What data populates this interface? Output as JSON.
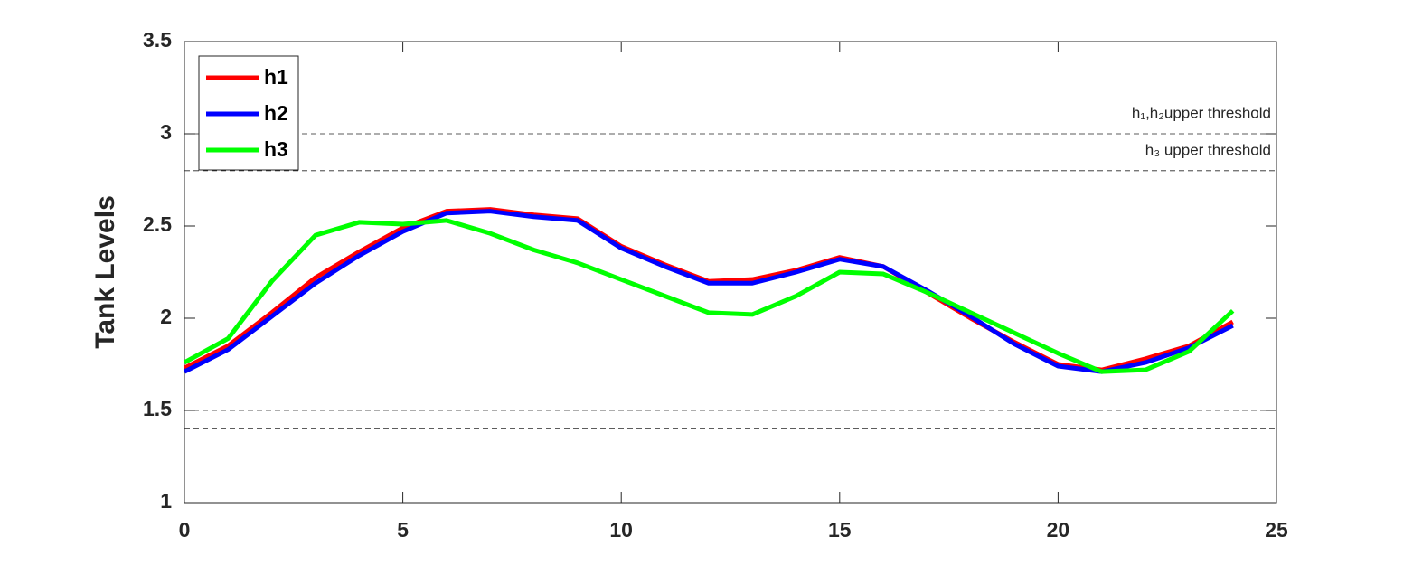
{
  "chart_data": {
    "type": "line",
    "ylabel": "Tank Levels",
    "x": [
      0,
      1,
      2,
      3,
      4,
      5,
      6,
      7,
      8,
      9,
      10,
      11,
      12,
      13,
      14,
      15,
      16,
      17,
      18,
      19,
      20,
      21,
      22,
      23,
      24
    ],
    "series": [
      {
        "name": "h1",
        "color": "#ff0000",
        "values": [
          1.73,
          1.85,
          2.03,
          2.22,
          2.36,
          2.49,
          2.58,
          2.59,
          2.56,
          2.54,
          2.39,
          2.29,
          2.2,
          2.21,
          2.26,
          2.33,
          2.28,
          2.14,
          2.0,
          1.87,
          1.75,
          1.72,
          1.78,
          1.85,
          1.98
        ]
      },
      {
        "name": "h2",
        "color": "#0000ff",
        "values": [
          1.71,
          1.83,
          2.01,
          2.19,
          2.34,
          2.47,
          2.57,
          2.58,
          2.55,
          2.53,
          2.38,
          2.28,
          2.19,
          2.19,
          2.25,
          2.32,
          2.28,
          2.15,
          2.01,
          1.86,
          1.74,
          1.71,
          1.76,
          1.84,
          1.96
        ]
      },
      {
        "name": "h3",
        "color": "#00ff00",
        "values": [
          1.76,
          1.89,
          2.2,
          2.45,
          2.52,
          2.51,
          2.53,
          2.46,
          2.37,
          2.3,
          2.21,
          2.12,
          2.03,
          2.02,
          2.12,
          2.25,
          2.24,
          2.14,
          2.03,
          1.92,
          1.81,
          1.71,
          1.72,
          1.82,
          2.04
        ]
      }
    ],
    "thresholds": [
      {
        "value": 3,
        "label": "h₁,h₂upper threshold"
      },
      {
        "value": 2.8,
        "label": "h₃ upper threshold"
      },
      {
        "value": 1.5
      },
      {
        "value": 1.4
      }
    ],
    "xlim": [
      0,
      25
    ],
    "xticks": [
      0,
      5,
      10,
      15,
      20,
      25
    ],
    "ylim": [
      1,
      3.5
    ],
    "yticks": [
      1,
      1.5,
      2,
      2.5,
      3,
      3.5
    ],
    "grid": false,
    "legend": "upper-left"
  }
}
